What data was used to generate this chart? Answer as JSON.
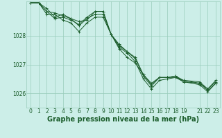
{
  "bg_color": "#cceee8",
  "grid_color": "#99ccbb",
  "line_color": "#1a5c2a",
  "xlabel": "Graphe pression niveau de la mer (hPa)",
  "xlabel_color": "#1a5c2a",
  "xlabel_fontsize": 7,
  "tick_color": "#1a5c2a",
  "tick_fontsize": 5.5,
  "ylim": [
    1025.5,
    1029.2
  ],
  "xlim": [
    -0.5,
    23.5
  ],
  "yticks": [
    1026,
    1027,
    1028
  ],
  "xticks": [
    0,
    1,
    2,
    3,
    4,
    5,
    6,
    7,
    8,
    9,
    10,
    11,
    12,
    13,
    14,
    15,
    16,
    17,
    18,
    19,
    21,
    22,
    23
  ],
  "series": [
    [
      1029.15,
      1029.15,
      1028.75,
      1028.75,
      1028.55,
      1028.45,
      1028.15,
      1028.45,
      1028.65,
      1028.65,
      1028.05,
      1027.55,
      1027.25,
      1027.05,
      1026.65,
      1026.35,
      1026.55,
      1026.55,
      1026.55,
      1026.45,
      1026.35,
      1026.1,
      1026.35
    ],
    [
      1029.15,
      1029.15,
      1028.85,
      1028.8,
      1028.7,
      1028.6,
      1028.35,
      1028.6,
      1028.75,
      1028.75,
      1028.05,
      1027.65,
      1027.45,
      1027.2,
      1026.6,
      1026.25,
      1026.55,
      1026.55,
      1026.6,
      1026.4,
      1026.35,
      1026.15,
      1026.4
    ],
    [
      1029.15,
      1029.15,
      1028.95,
      1028.65,
      1028.75,
      1028.6,
      1028.5,
      1028.55,
      1028.85,
      1028.85,
      1028.05,
      1027.7,
      1027.45,
      1027.25,
      1026.65,
      1026.3,
      1026.55,
      1026.55,
      1026.6,
      1026.45,
      1026.4,
      1026.15,
      1026.45
    ],
    [
      1029.15,
      1029.15,
      1028.85,
      1028.6,
      1028.65,
      1028.55,
      1028.4,
      1028.65,
      1028.85,
      1028.85,
      1028.05,
      1027.6,
      1027.4,
      1027.1,
      1026.5,
      1026.15,
      1026.45,
      1026.5,
      1026.55,
      1026.4,
      1026.3,
      1026.05,
      1026.35
    ]
  ],
  "x_indices": [
    0,
    1,
    2,
    3,
    4,
    5,
    6,
    7,
    8,
    9,
    10,
    11,
    12,
    13,
    14,
    15,
    16,
    17,
    18,
    19,
    21,
    22,
    23
  ]
}
